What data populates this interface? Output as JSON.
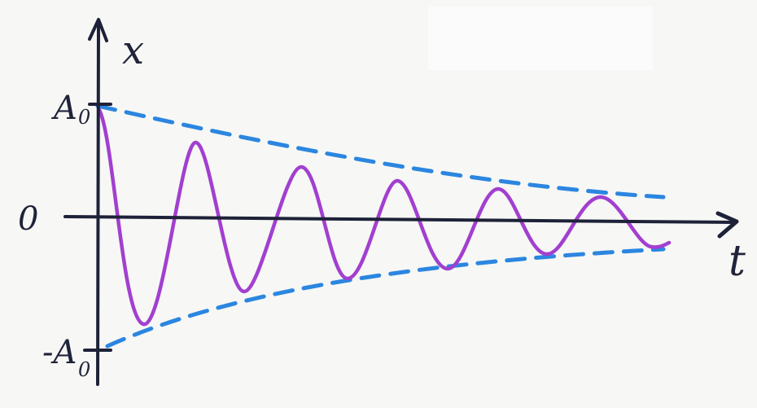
{
  "diagram": {
    "labels": {
      "x_axis": "x",
      "t_axis": "t",
      "origin": "0",
      "amplitude_pos": "A",
      "amplitude_pos_sub": "0",
      "amplitude_neg": "-A",
      "amplitude_neg_sub": "0"
    },
    "colors": {
      "background": "#f7f7f5",
      "axes": "#1e2238",
      "oscillation": "#a23fd0",
      "envelope": "#2b86e0"
    }
  }
}
